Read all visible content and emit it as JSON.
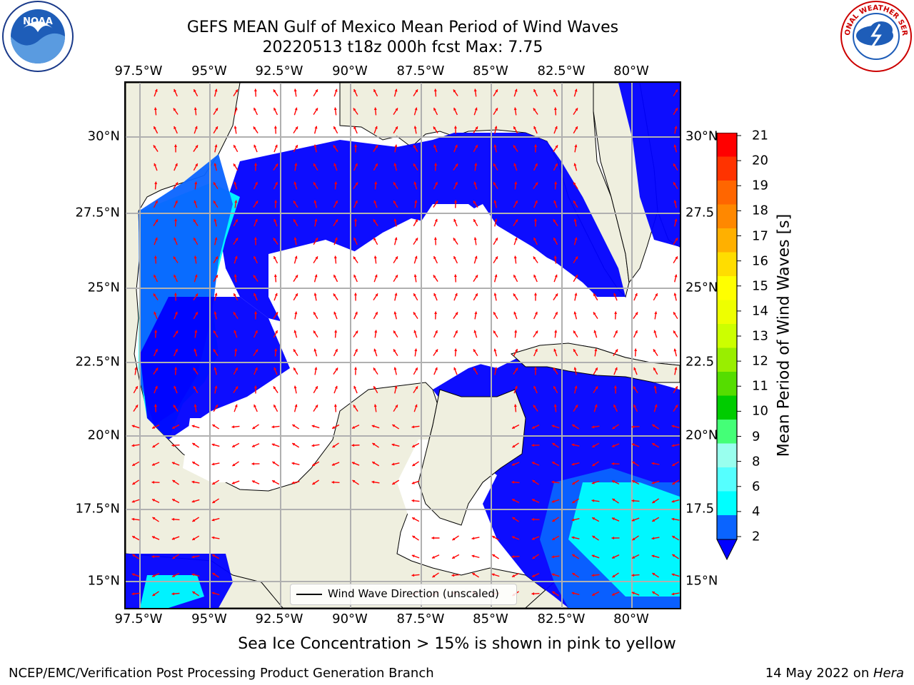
{
  "title_line1": "GEFS MEAN Gulf of Mexico Mean Period of Wind Waves",
  "title_line2": "20220513 t18z 000h fcst   Max: 7.75",
  "logos": {
    "left": "NOAA",
    "right": "NATIONAL WEATHER SERVICE"
  },
  "lon_ticks": [
    "97.5°W",
    "95°W",
    "92.5°W",
    "90°W",
    "87.5°W",
    "85°W",
    "82.5°W",
    "80°W"
  ],
  "lat_ticks_left": [
    "30°N",
    "27.5°N",
    "25°N",
    "22.5°N",
    "20°N",
    "17.5°N",
    "15°N"
  ],
  "lat_ticks_right": [
    "30°N",
    "27.5",
    "25°N",
    "22.5",
    "20°N",
    "17.5",
    "15°N"
  ],
  "colorbar": {
    "title": "Mean Period of Wind Waves [s]",
    "tick_labels": [
      "2",
      "4",
      "6",
      "8",
      "9",
      "10",
      "11",
      "12",
      "13",
      "14",
      "15",
      "16",
      "17",
      "18",
      "19",
      "20",
      "21"
    ],
    "colors": [
      "#0a64ff",
      "#00e6ff",
      "#33ffff",
      "#66ffff",
      "#99ffee",
      "#55ff88",
      "#22e622",
      "#00cc00",
      "#66dd00",
      "#aaee00",
      "#ccff00",
      "#eeff00",
      "#ffff00",
      "#ffdd00",
      "#ffbb00",
      "#ff9900",
      "#ff6600",
      "#ff3300",
      "#ff0000"
    ],
    "under_color": "#0000ff"
  },
  "legend": "Wind Wave Direction (unscaled)",
  "sea_ice_note": "Sea Ice Concentration > 15% is shown in pink to yellow",
  "footer_left": "NCEP/EMC/Verification Post Processing Product Generation Branch",
  "footer_date": "14 May 2022 on ",
  "footer_machine": "Hera",
  "map_colors": {
    "land": "#efefdf",
    "low": "#0000ff",
    "mid": "#0a64ff",
    "high": "#00ffff",
    "arrow": "#ff0000"
  },
  "map_data": {
    "lon_range": [
      -98.0,
      -78.0
    ],
    "lat_range": [
      14.0,
      31.7
    ],
    "max_period": 7.75
  }
}
